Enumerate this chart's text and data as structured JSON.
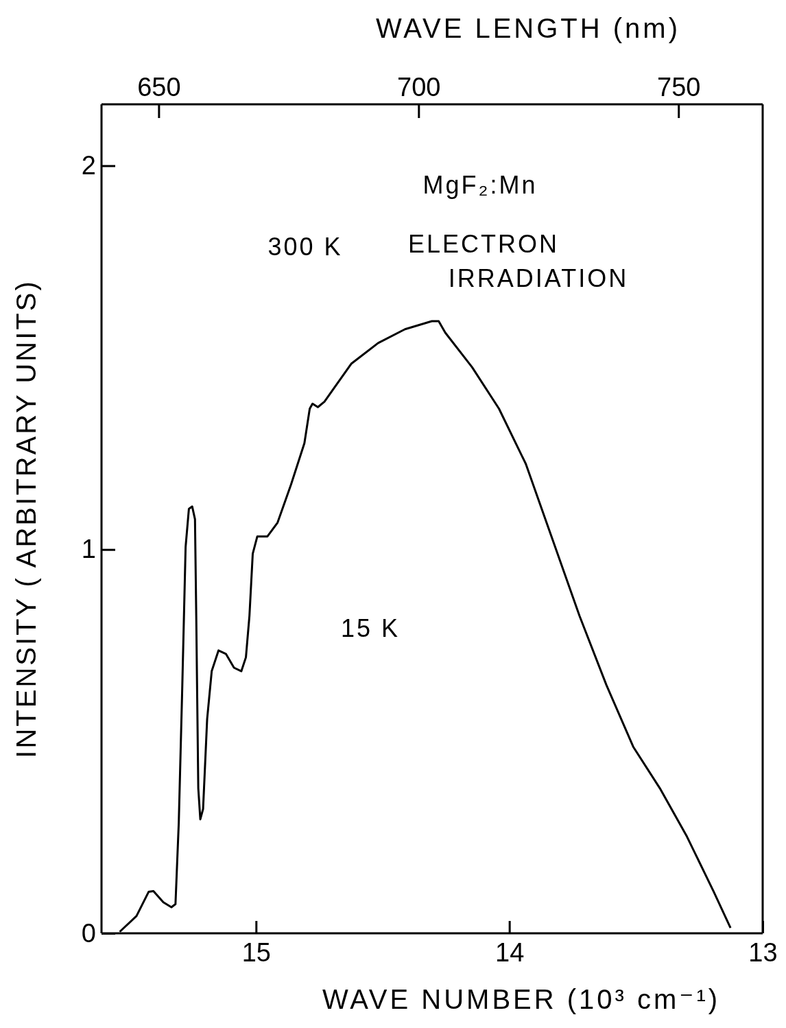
{
  "chart_data": {
    "type": "line",
    "xlabel": "WAVE NUMBER (10³ cm⁻¹)",
    "x2label": "WAVE LENGTH (nm)",
    "ylabel": "INTENSITY ( ARBITRARY UNITS)",
    "xlim": [
      15.61,
      13
    ],
    "xticks": [
      15,
      14,
      13
    ],
    "x2lim": [
      639.0,
      766.2
    ],
    "x2ticks": [
      650,
      700,
      750
    ],
    "ylim": [
      0,
      2.16
    ],
    "yticks": [
      0,
      1,
      2
    ],
    "grid": false,
    "marker": "none",
    "line_style": "solid",
    "annotations": [
      "MgF₂:Mn",
      "300 K",
      "ELECTRON IRRADIATION",
      "15 K"
    ],
    "series": [
      {
        "color": "#000000",
        "x": [
          15.538,
          15.472,
          15.424,
          15.405,
          15.366,
          15.334,
          15.318,
          15.305,
          15.291,
          15.278,
          15.265,
          15.252,
          15.241,
          15.236,
          15.228,
          15.22,
          15.209,
          15.193,
          15.175,
          15.148,
          15.119,
          15.087,
          15.058,
          15.04,
          15.026,
          15.013,
          14.995,
          14.955,
          14.915,
          14.862,
          14.809,
          14.788,
          14.777,
          14.756,
          14.73,
          14.698,
          14.624,
          14.518,
          14.412,
          14.306,
          14.279,
          14.253,
          14.147,
          14.041,
          13.935,
          13.829,
          13.723,
          13.617,
          13.511,
          13.406,
          13.299,
          13.193,
          13.127
        ],
        "values": [
          0.004,
          0.045,
          0.108,
          0.11,
          0.081,
          0.068,
          0.076,
          0.288,
          0.647,
          1.007,
          1.106,
          1.112,
          1.079,
          0.827,
          0.378,
          0.297,
          0.324,
          0.558,
          0.683,
          0.737,
          0.728,
          0.692,
          0.683,
          0.719,
          0.827,
          0.989,
          1.034,
          1.034,
          1.07,
          1.169,
          1.277,
          1.367,
          1.38,
          1.371,
          1.385,
          1.415,
          1.484,
          1.538,
          1.574,
          1.595,
          1.595,
          1.565,
          1.475,
          1.367,
          1.223,
          1.025,
          0.827,
          0.647,
          0.486,
          0.378,
          0.252,
          0.108,
          0.014
        ]
      }
    ]
  }
}
